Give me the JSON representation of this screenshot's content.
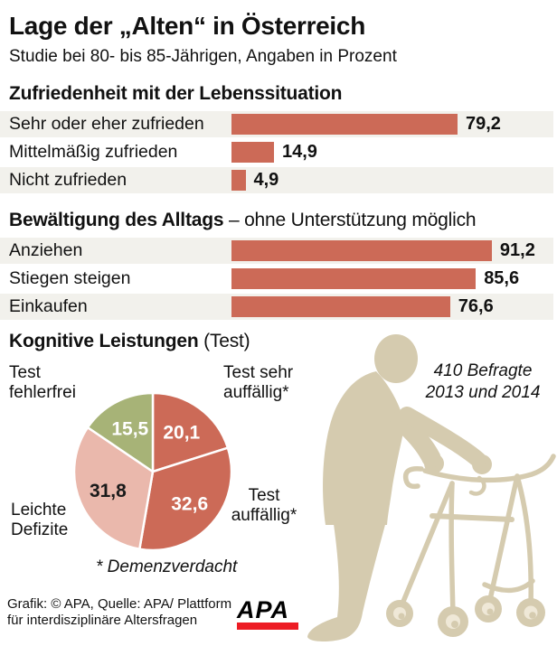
{
  "header": {
    "title": "Lage der „Alten“ in Österreich",
    "subtitle": "Studie bei 80- bis 85-Jährigen, Angaben in Prozent"
  },
  "chart_data": [
    {
      "type": "bar",
      "title": "Zufriedenheit mit der Lebenssituation",
      "categories": [
        "Sehr oder eher zufrieden",
        "Mittelmäßig zufrieden",
        "Nicht zufrieden"
      ],
      "values": [
        79.2,
        14.9,
        4.9
      ],
      "value_labels": [
        "79,2",
        "14,9",
        "4,9"
      ],
      "unit": "percent",
      "xlim": [
        0,
        100
      ]
    },
    {
      "type": "bar",
      "title": "Bewältigung des Alltags",
      "title_suffix": " – ohne Unterstützung möglich",
      "categories": [
        "Anziehen",
        "Stiegen steigen",
        "Einkaufen"
      ],
      "values": [
        91.2,
        85.6,
        76.6
      ],
      "value_labels": [
        "91,2",
        "85,6",
        "76,6"
      ],
      "unit": "percent",
      "xlim": [
        0,
        100
      ]
    },
    {
      "type": "pie",
      "title": "Kognitive Leistungen",
      "title_suffix": " (Test)",
      "start_angle": "12-oclock",
      "direction": "clockwise",
      "slices": [
        {
          "label": "Test sehr auffällig*",
          "value": 20.1,
          "value_label": "20,1",
          "color": "#cc6a57",
          "text_color": "#ffffff"
        },
        {
          "label": "Test auffällig*",
          "value": 32.6,
          "value_label": "32,6",
          "color": "#cc6a57",
          "text_color": "#ffffff"
        },
        {
          "label": "Leichte Defizite",
          "value": 31.8,
          "value_label": "31,8",
          "color": "#eab8ac",
          "text_color": "#1a1a1a"
        },
        {
          "label": "Test fehlerfrei",
          "value": 15.5,
          "value_label": "15,5",
          "color": "#a7b377",
          "text_color": "#ffffff"
        }
      ],
      "footnote": "* Demenzverdacht"
    }
  ],
  "annotation": {
    "line1": "410 Befragte",
    "line2": "2013 und 2014"
  },
  "footer": {
    "credit_line1": "Grafik: © APA, Quelle: APA/ Plattform",
    "credit_line2": "für interdisziplinäre Altersfragen",
    "logo_text": "APA"
  },
  "icons": {
    "silhouette": "elderly-person-with-rollator"
  },
  "colors": {
    "bar": "#cc6a57",
    "row_stripe": "#f2f1ec",
    "pie_red": "#cc6a57",
    "pie_pink": "#eab8ac",
    "pie_green": "#a7b377",
    "silhouette": "#d5cbaf",
    "wheel_hub": "#efe8d7",
    "logo_red": "#ed1c24"
  }
}
